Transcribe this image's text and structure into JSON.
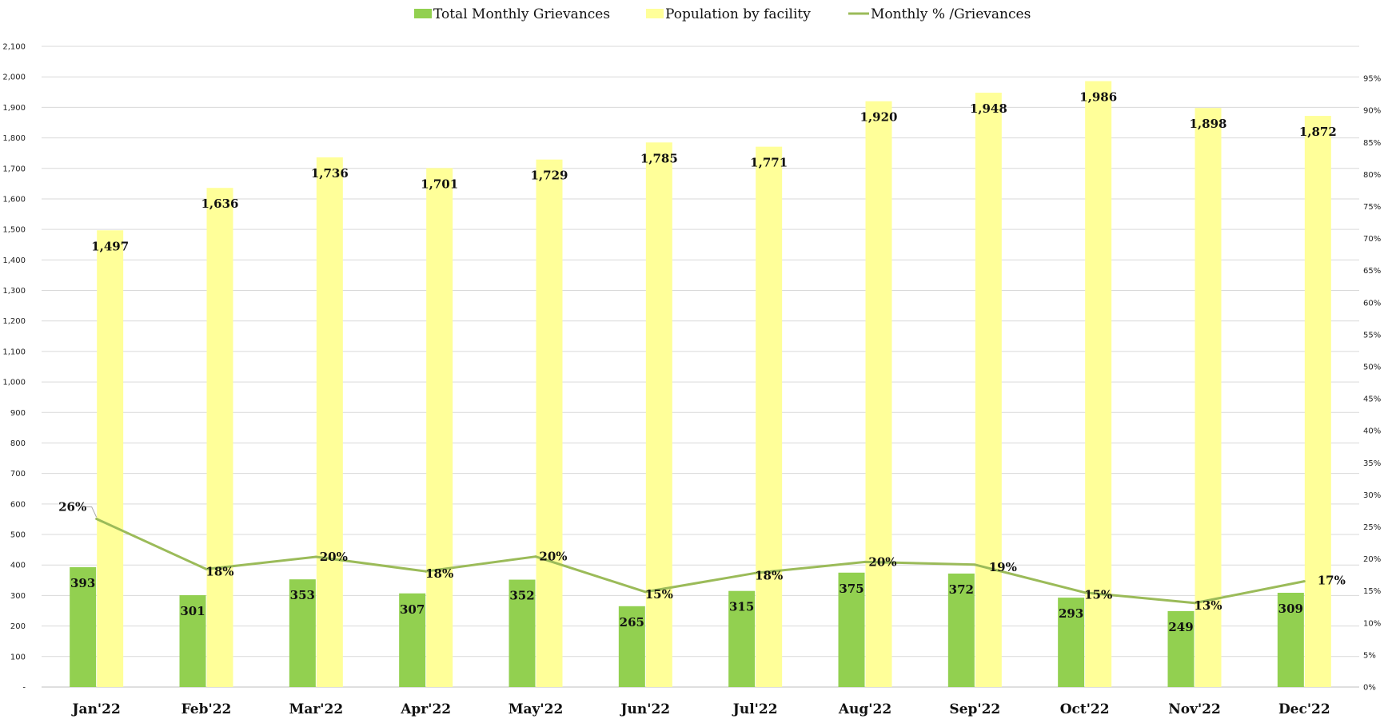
{
  "chart_data": {
    "type": "bar",
    "categories": [
      "Jan'22",
      "Feb'22",
      "Mar'22",
      "Apr'22",
      "May'22",
      "Jun'22",
      "Jul'22",
      "Aug'22",
      "Sep'22",
      "Oct'22",
      "Nov'22",
      "Dec'22"
    ],
    "series": [
      {
        "name": "Total Monthly Grievances",
        "type": "bar",
        "axis": "left",
        "color": "#92d050",
        "values": [
          393,
          301,
          353,
          307,
          352,
          265,
          315,
          375,
          372,
          293,
          249,
          309
        ],
        "labels": [
          "393",
          "301",
          "353",
          "307",
          "352",
          "265",
          "315",
          "375",
          "372",
          "293",
          "249",
          "309"
        ]
      },
      {
        "name": "Population by facility",
        "type": "bar",
        "axis": "left",
        "color": "#ffff99",
        "values": [
          1497,
          1636,
          1736,
          1701,
          1729,
          1785,
          1771,
          1920,
          1948,
          1986,
          1898,
          1872
        ],
        "labels": [
          "1,497",
          "1,636",
          "1,736",
          "1,701",
          "1,729",
          "1,785",
          "1,771",
          "1,920",
          "1,948",
          "1,986",
          "1,898",
          "1,872"
        ]
      },
      {
        "name": "Monthly % /Grievances",
        "type": "line",
        "axis": "right",
        "color": "#9bbb59",
        "values": [
          26.25,
          18.4,
          20.33,
          18.05,
          20.36,
          14.85,
          17.79,
          19.53,
          19.1,
          14.75,
          13.12,
          16.51
        ],
        "labels": [
          "26%",
          "18%",
          "20%",
          "18%",
          "20%",
          "15%",
          "18%",
          "20%",
          "19%",
          "15%",
          "13%",
          "17%"
        ]
      }
    ],
    "title": "",
    "xlabel": "",
    "ylabel": "",
    "ylim": [
      0,
      2100
    ],
    "y2lim": [
      0,
      100
    ],
    "yticks": [
      0,
      100,
      200,
      300,
      400,
      500,
      600,
      700,
      800,
      900,
      1000,
      1100,
      1200,
      1300,
      1400,
      1500,
      1600,
      1700,
      1800,
      1900,
      2000,
      2100
    ],
    "ytick_labels": [
      "-",
      "100",
      "200",
      "300",
      "400",
      "500",
      "600",
      "700",
      "800",
      "900",
      "1,000",
      "1,100",
      "1,200",
      "1,300",
      "1,400",
      "1,500",
      "1,600",
      "1,700",
      "1,800",
      "1,900",
      "2,000",
      "2,100"
    ],
    "y2ticks": [
      0,
      5,
      10,
      15,
      20,
      25,
      30,
      35,
      40,
      45,
      50,
      55,
      60,
      65,
      70,
      75,
      80,
      85,
      90,
      95
    ],
    "y2tick_labels": [
      "0%",
      "5%",
      "10%",
      "15%",
      "20%",
      "25%",
      "30%",
      "35%",
      "40%",
      "45%",
      "50%",
      "55%",
      "60%",
      "65%",
      "70%",
      "75%",
      "80%",
      "85%",
      "90%",
      "95%"
    ],
    "grid": true,
    "legend_position": "top-center",
    "gridline_color": "#d9d9d9"
  }
}
